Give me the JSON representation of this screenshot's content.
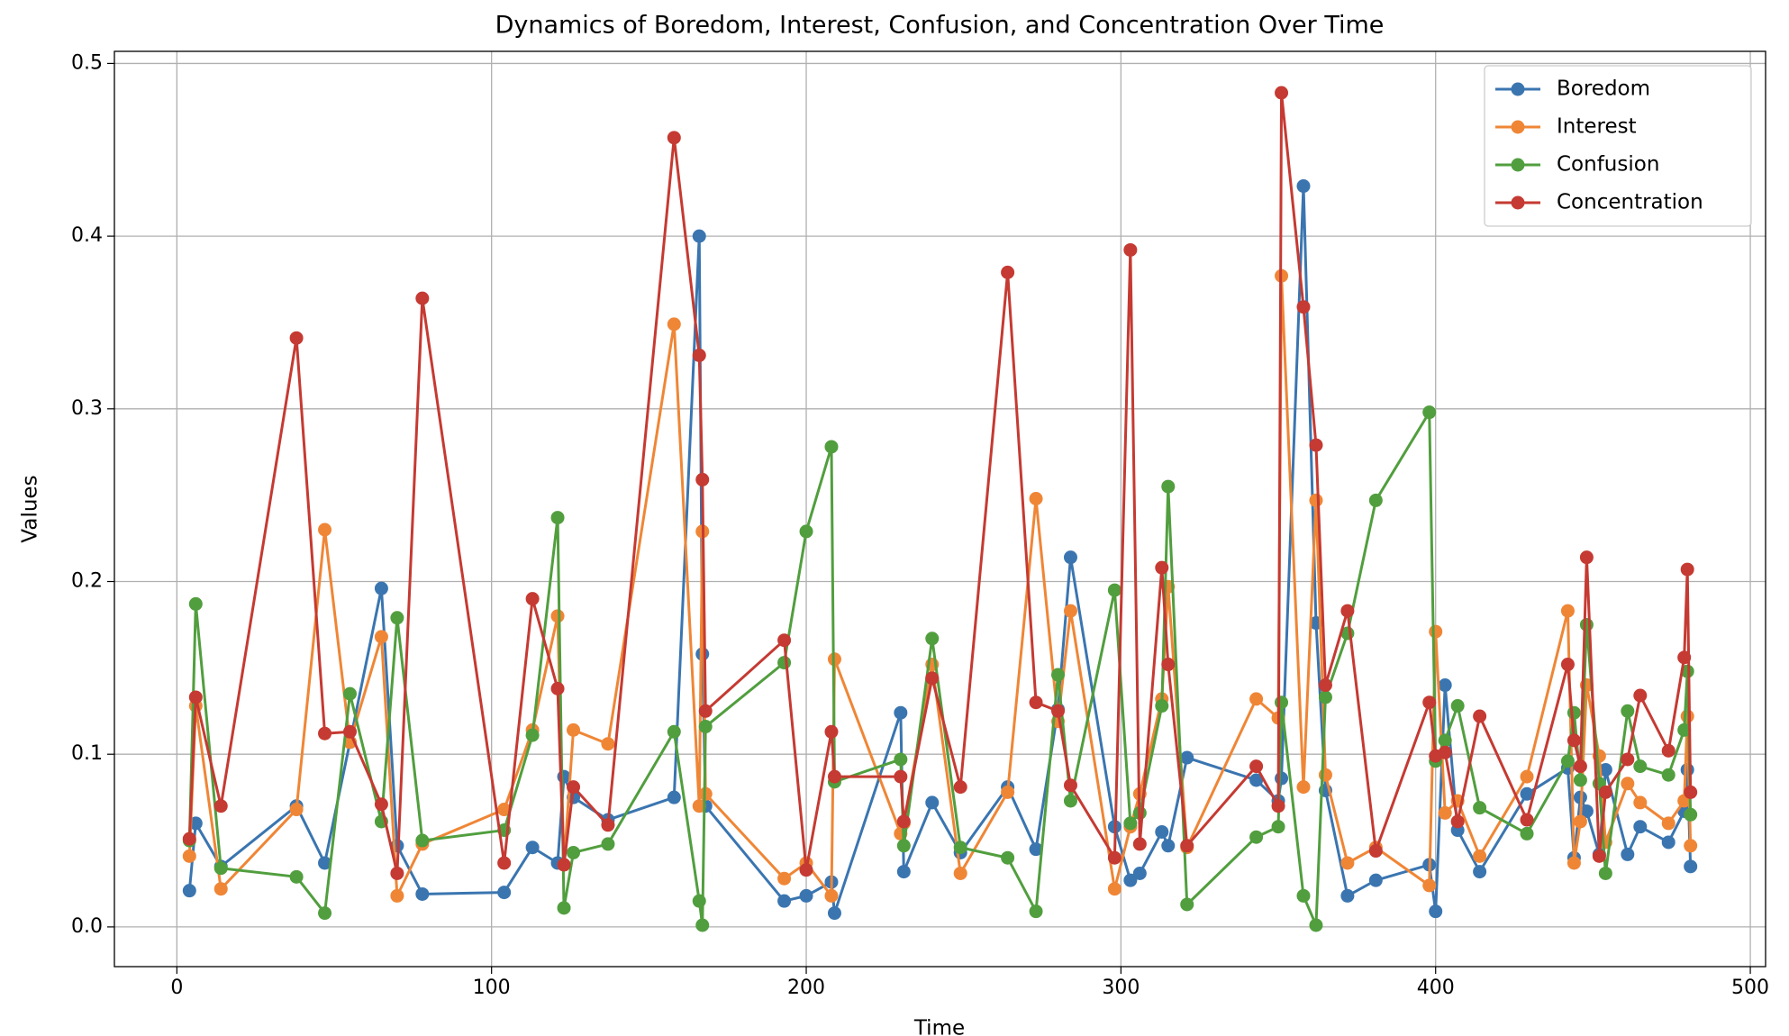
{
  "chart_data": {
    "type": "line",
    "title": "Dynamics of Boredom, Interest, Confusion, and Concentration Over Time",
    "x_label": "Time",
    "y_label": "Values",
    "x": [
      4,
      6,
      14,
      38,
      47,
      55,
      65,
      70,
      78,
      104,
      113,
      121,
      123,
      126,
      137,
      158,
      166,
      167,
      168,
      193,
      200,
      208,
      209,
      230,
      231,
      240,
      249,
      264,
      273,
      280,
      284,
      298,
      303,
      306,
      313,
      315,
      321,
      343,
      350,
      351,
      358,
      362,
      365,
      372,
      381,
      398,
      400,
      403,
      407,
      414,
      429,
      442,
      444,
      446,
      448,
      452,
      454,
      461,
      465,
      474,
      479,
      480,
      481
    ],
    "series": [
      {
        "name": "Boredom",
        "color": "#3a75b0",
        "values": [
          0.021,
          0.06,
          0.035,
          0.07,
          0.037,
          0.107,
          0.196,
          0.047,
          0.019,
          0.02,
          0.046,
          0.037,
          0.087,
          0.075,
          0.062,
          0.075,
          0.4,
          0.158,
          0.07,
          0.015,
          0.018,
          0.026,
          0.008,
          0.124,
          0.032,
          0.072,
          0.043,
          0.081,
          0.045,
          0.126,
          0.214,
          0.058,
          0.027,
          0.031,
          0.055,
          0.047,
          0.098,
          0.085,
          0.073,
          0.086,
          0.429,
          0.176,
          0.079,
          0.018,
          0.027,
          0.036,
          0.009,
          0.14,
          0.056,
          0.032,
          0.077,
          0.092,
          0.04,
          0.075,
          0.067,
          0.042,
          0.091,
          0.042,
          0.058,
          0.049,
          0.067,
          0.091,
          0.035
        ]
      },
      {
        "name": "Interest",
        "color": "#ef8636",
        "values": [
          0.041,
          0.128,
          0.022,
          0.068,
          0.23,
          0.107,
          0.168,
          0.018,
          0.048,
          0.068,
          0.114,
          0.18,
          0.036,
          0.114,
          0.106,
          0.349,
          0.07,
          0.229,
          0.077,
          0.028,
          0.037,
          0.018,
          0.155,
          0.054,
          0.06,
          0.152,
          0.031,
          0.078,
          0.248,
          0.119,
          0.183,
          0.022,
          0.058,
          0.077,
          0.132,
          0.197,
          0.046,
          0.132,
          0.121,
          0.377,
          0.081,
          0.247,
          0.088,
          0.037,
          0.046,
          0.024,
          0.171,
          0.066,
          0.073,
          0.041,
          0.087,
          0.183,
          0.037,
          0.061,
          0.14,
          0.099,
          0.049,
          0.083,
          0.072,
          0.06,
          0.073,
          0.122,
          0.047
        ]
      },
      {
        "name": "Confusion",
        "color": "#519e3e",
        "values": [
          0.05,
          0.187,
          0.034,
          0.029,
          0.008,
          0.135,
          0.061,
          0.179,
          0.05,
          0.056,
          0.111,
          0.237,
          0.011,
          0.043,
          0.048,
          0.113,
          0.015,
          0.001,
          0.116,
          0.153,
          0.229,
          0.278,
          0.084,
          0.097,
          0.047,
          0.167,
          0.046,
          0.04,
          0.009,
          0.146,
          0.073,
          0.195,
          0.06,
          0.066,
          0.128,
          0.255,
          0.013,
          0.052,
          0.058,
          0.13,
          0.018,
          0.001,
          0.133,
          0.17,
          0.247,
          0.298,
          0.096,
          0.108,
          0.128,
          0.069,
          0.054,
          0.096,
          0.124,
          0.085,
          0.175,
          0.083,
          0.031,
          0.125,
          0.093,
          0.088,
          0.114,
          0.148,
          0.065
        ]
      },
      {
        "name": "Concentration",
        "color": "#c53a32",
        "values": [
          0.051,
          0.133,
          0.07,
          0.341,
          0.112,
          0.113,
          0.071,
          0.031,
          0.364,
          0.037,
          0.19,
          0.138,
          0.036,
          0.081,
          0.059,
          0.457,
          0.331,
          0.259,
          0.125,
          0.166,
          0.033,
          0.113,
          0.087,
          0.087,
          0.061,
          0.144,
          0.081,
          0.379,
          0.13,
          0.125,
          0.082,
          0.04,
          0.392,
          0.048,
          0.208,
          0.152,
          0.047,
          0.093,
          0.07,
          0.483,
          0.359,
          0.279,
          0.14,
          0.183,
          0.044,
          0.13,
          0.099,
          0.101,
          0.061,
          0.122,
          0.062,
          0.152,
          0.108,
          0.093,
          0.214,
          0.041,
          0.078,
          0.097,
          0.134,
          0.102,
          0.156,
          0.207,
          0.078
        ]
      }
    ],
    "xlim": [
      -19.85,
      504.85
    ],
    "ylim": [
      -0.023,
      0.507
    ],
    "xticks": [
      0,
      100,
      200,
      300,
      400,
      500
    ],
    "yticks": [
      {
        "value": 0,
        "label": "0.0"
      },
      0.1,
      0.2,
      0.3,
      0.4,
      0.5
    ],
    "grid": true,
    "legend": "upper right"
  }
}
